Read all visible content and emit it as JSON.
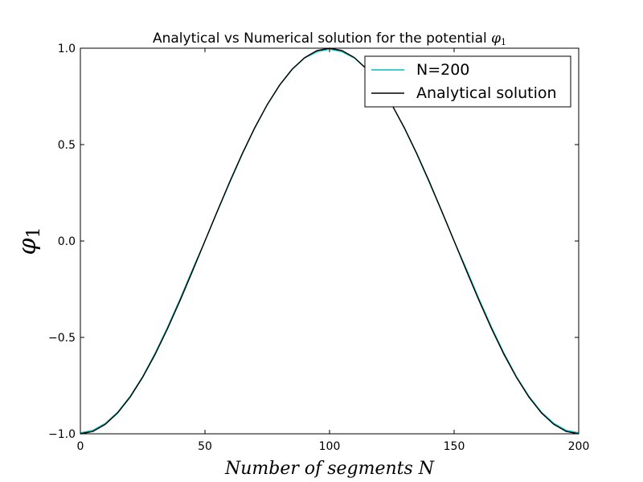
{
  "chart_data": {
    "type": "line",
    "title": {
      "prefix": "Analytical vs Numerical solution for the potential ",
      "symbol": "φ",
      "subscript": "1"
    },
    "xlabel": "Number of segments N",
    "ylabel": {
      "symbol": "φ",
      "subscript": "1"
    },
    "xlim": [
      0,
      200
    ],
    "ylim": [
      -1.0,
      1.0
    ],
    "x_ticks": [
      0,
      50,
      100,
      150,
      200
    ],
    "x_tick_labels": [
      "0",
      "50",
      "100",
      "150",
      "200"
    ],
    "y_ticks": [
      -1.0,
      -0.5,
      0.0,
      0.5,
      1.0
    ],
    "y_tick_labels": [
      "−1.0",
      "−0.5",
      "0.0",
      "0.5",
      "1.0"
    ],
    "grid": false,
    "legend_position": "top-right",
    "series": [
      {
        "name": "N=200",
        "color": "#00bfbf",
        "x": [
          0,
          5,
          10,
          15,
          20,
          25,
          30,
          35,
          40,
          45,
          50,
          55,
          60,
          65,
          70,
          75,
          80,
          85,
          90,
          95,
          100,
          105,
          110,
          115,
          120,
          125,
          130,
          135,
          140,
          145,
          150,
          155,
          160,
          165,
          170,
          175,
          180,
          185,
          190,
          195,
          200
        ],
        "y": [
          -0.995,
          -0.982,
          -0.946,
          -0.887,
          -0.805,
          -0.703,
          -0.582,
          -0.447,
          -0.301,
          -0.148,
          0.0,
          0.154,
          0.305,
          0.451,
          0.586,
          0.708,
          0.81,
          0.89,
          0.949,
          0.982,
          0.995,
          0.982,
          0.949,
          0.89,
          0.81,
          0.708,
          0.586,
          0.451,
          0.305,
          0.154,
          0.0,
          -0.148,
          -0.301,
          -0.447,
          -0.582,
          -0.703,
          -0.805,
          -0.887,
          -0.946,
          -0.982,
          -0.995
        ]
      },
      {
        "name": "Analytical solution",
        "color": "#000000",
        "x": [
          0,
          5,
          10,
          15,
          20,
          25,
          30,
          35,
          40,
          45,
          50,
          55,
          60,
          65,
          70,
          75,
          80,
          85,
          90,
          95,
          100,
          105,
          110,
          115,
          120,
          125,
          130,
          135,
          140,
          145,
          150,
          155,
          160,
          165,
          170,
          175,
          180,
          185,
          190,
          195,
          200
        ],
        "y": [
          -1.0,
          -0.988,
          -0.951,
          -0.891,
          -0.809,
          -0.707,
          -0.588,
          -0.454,
          -0.309,
          -0.156,
          0.0,
          0.156,
          0.309,
          0.454,
          0.588,
          0.707,
          0.809,
          0.891,
          0.951,
          0.988,
          1.0,
          0.988,
          0.951,
          0.891,
          0.809,
          0.707,
          0.588,
          0.454,
          0.309,
          0.156,
          0.0,
          -0.156,
          -0.309,
          -0.454,
          -0.588,
          -0.707,
          -0.809,
          -0.891,
          -0.951,
          -0.988,
          -1.0
        ]
      }
    ]
  }
}
